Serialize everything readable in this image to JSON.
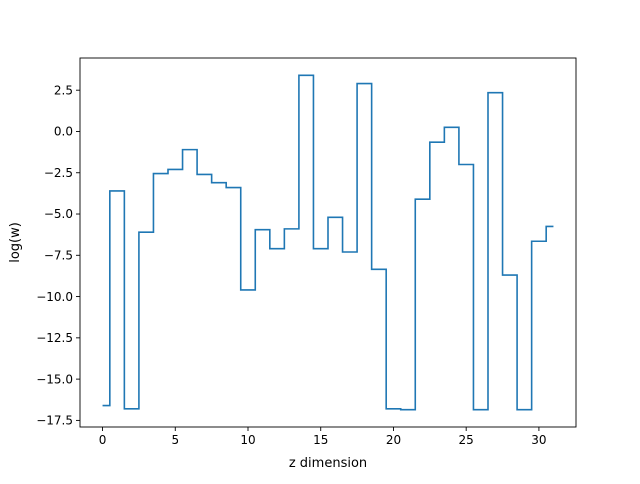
{
  "chart_data": {
    "type": "line",
    "drawstyle": "steps-mid",
    "title": "",
    "xlabel": "z dimension",
    "ylabel": "log(w)",
    "xlim": [
      -1.55,
      32.55
    ],
    "ylim": [
      -17.9,
      4.45
    ],
    "xticks": [
      0,
      5,
      10,
      15,
      20,
      25,
      30
    ],
    "xtick_labels": [
      "0",
      "5",
      "10",
      "15",
      "20",
      "25",
      "30"
    ],
    "yticks": [
      2.5,
      0.0,
      -2.5,
      -5.0,
      -7.5,
      -10.0,
      -12.5,
      -15.0,
      -17.5
    ],
    "ytick_labels": [
      "2.5",
      "0.0",
      "−2.5",
      "−5.0",
      "−7.5",
      "−10.0",
      "−12.5",
      "−15.0",
      "−17.5"
    ],
    "grid": false,
    "line_color": "#1f77b4",
    "series": [
      {
        "x": [
          0,
          1,
          2,
          3,
          4,
          5,
          6,
          7,
          8,
          9,
          10,
          11,
          12,
          13,
          14,
          15,
          16,
          17,
          18,
          19,
          20,
          21,
          22,
          23,
          24,
          25,
          26,
          27,
          28,
          29,
          30,
          31
        ],
        "values": [
          -16.6,
          -3.6,
          -16.8,
          -6.1,
          -2.55,
          -2.3,
          -1.1,
          -2.6,
          -3.1,
          -3.4,
          -9.6,
          -5.95,
          -7.1,
          -5.9,
          3.4,
          -7.1,
          -5.2,
          -7.3,
          2.9,
          -8.35,
          -16.8,
          -16.85,
          -4.1,
          -0.65,
          0.25,
          -2.0,
          -16.85,
          2.35,
          -8.7,
          -16.85,
          -6.65,
          -5.75
        ]
      }
    ]
  }
}
